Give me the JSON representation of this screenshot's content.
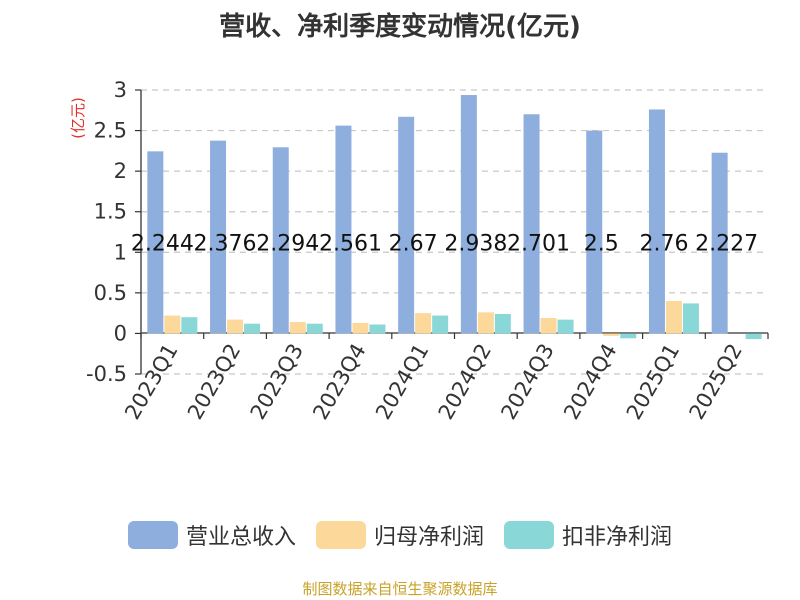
{
  "chart_data": {
    "type": "bar",
    "title": "营收、净利季度变动情况(亿元)",
    "ylabel": "(亿元)",
    "ylim": [
      -0.5,
      3
    ],
    "yticks": [
      "-0.5",
      "0",
      "0.5",
      "1",
      "1.5",
      "2",
      "2.5",
      "3"
    ],
    "grid": true,
    "legend_position": "bottom",
    "categories": [
      "2023Q1",
      "2023Q2",
      "2023Q3",
      "2023Q4",
      "2024Q1",
      "2024Q2",
      "2024Q3",
      "2024Q4",
      "2025Q1",
      "2025Q2"
    ],
    "series": [
      {
        "name": "营业总收入",
        "color": "#8eaede",
        "values": [
          2.244,
          2.376,
          2.294,
          2.561,
          2.67,
          2.938,
          2.701,
          2.5,
          2.76,
          2.227
        ],
        "data_labels": [
          "2.244",
          "2.376",
          "2.294",
          "2.561",
          "2.67",
          "2.938",
          "2.701",
          "2.5",
          "2.76",
          "2.227"
        ]
      },
      {
        "name": "归母净利润",
        "color": "#fcd89b",
        "values": [
          0.22,
          0.17,
          0.14,
          0.13,
          0.25,
          0.26,
          0.19,
          -0.03,
          0.4,
          0.0
        ]
      },
      {
        "name": "扣非净利润",
        "color": "#8ad7d8",
        "values": [
          0.2,
          0.12,
          0.12,
          0.11,
          0.22,
          0.24,
          0.17,
          -0.06,
          0.37,
          -0.07
        ]
      }
    ]
  },
  "source_text": "制图数据来自恒生聚源数据库"
}
